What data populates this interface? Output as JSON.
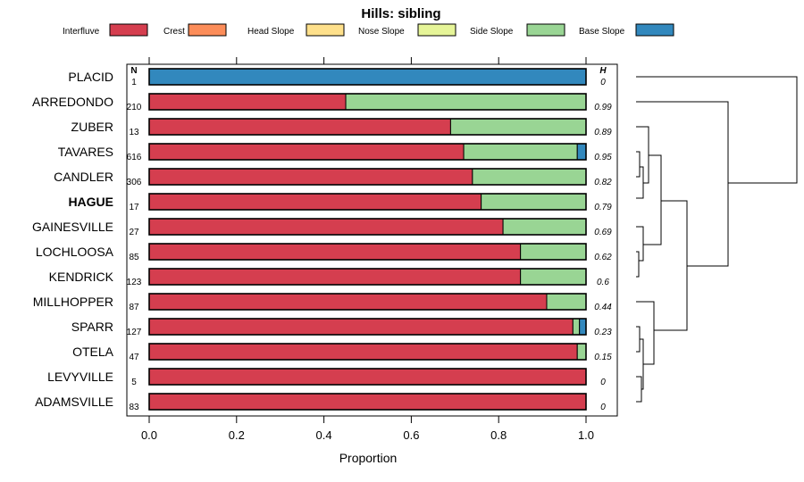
{
  "chart_data": {
    "type": "bar",
    "orientation": "horizontal",
    "stacked": true,
    "title": "Hills: sibling",
    "xlabel": "Proportion",
    "ylabel": "",
    "xlim": [
      0,
      1
    ],
    "xticks": [
      "0.0",
      "0.2",
      "0.4",
      "0.6",
      "0.8",
      "1.0"
    ],
    "n_header": "N",
    "h_header": "H",
    "categories": [
      "PLACID",
      "ARREDONDO",
      "ZUBER",
      "TAVARES",
      "CANDLER",
      "HAGUE",
      "GAINESVILLE",
      "LOCHLOOSA",
      "KENDRICK",
      "MILLHOPPER",
      "SPARR",
      "OTELA",
      "LEVYVILLE",
      "ADAMSVILLE"
    ],
    "highlighted": "HAGUE",
    "n_values": [
      "1",
      "210",
      "13",
      "616",
      "306",
      "17",
      "27",
      "85",
      "123",
      "87",
      "127",
      "47",
      "5",
      "83"
    ],
    "h_values": [
      "0",
      "0.99",
      "0.89",
      "0.95",
      "0.82",
      "0.79",
      "0.69",
      "0.62",
      "0.6",
      "0.44",
      "0.23",
      "0.15",
      "0",
      "0"
    ],
    "series": [
      {
        "name": "Interfluve",
        "color": "#D53E4F",
        "values": [
          0,
          0.45,
          0.69,
          0.72,
          0.74,
          0.76,
          0.81,
          0.85,
          0.85,
          0.91,
          0.97,
          0.98,
          1.0,
          1.0
        ]
      },
      {
        "name": "Crest",
        "color": "#FC8D59",
        "values": [
          0,
          0,
          0,
          0,
          0,
          0,
          0,
          0,
          0,
          0,
          0,
          0,
          0,
          0
        ]
      },
      {
        "name": "Head Slope",
        "color": "#FEE08B",
        "values": [
          0,
          0,
          0,
          0,
          0,
          0,
          0,
          0,
          0,
          0,
          0,
          0,
          0,
          0
        ]
      },
      {
        "name": "Nose Slope",
        "color": "#E6F598",
        "values": [
          0,
          0,
          0,
          0,
          0,
          0,
          0,
          0,
          0,
          0,
          0,
          0,
          0,
          0
        ]
      },
      {
        "name": "Side Slope",
        "color": "#99D594",
        "values": [
          0,
          0.55,
          0.31,
          0.26,
          0.26,
          0.24,
          0.19,
          0.15,
          0.15,
          0.09,
          0.015,
          0.02,
          0,
          0
        ]
      },
      {
        "name": "Base Slope",
        "color": "#3288BD",
        "values": [
          1.0,
          0,
          0,
          0.02,
          0,
          0,
          0,
          0,
          0,
          0,
          0.015,
          0,
          0,
          0
        ]
      }
    ],
    "legend_position": "top",
    "dendrogram": "right"
  }
}
